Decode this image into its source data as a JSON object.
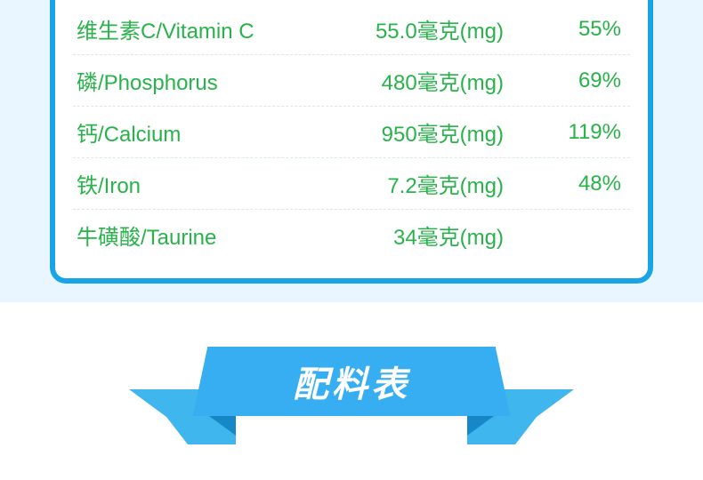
{
  "colors": {
    "page_bg_top": "#e9f5ff",
    "page_bg_bottom": "#ffffff",
    "box_border": "#1aa4e8",
    "box_bg": "#ffffff",
    "text_green": "#28b34a",
    "banner_main": "#36aef1",
    "banner_tail": "#3fb7ee",
    "banner_fold": "#1688c8",
    "banner_text": "#ffffff"
  },
  "nutrition": {
    "font_size_pt": 18,
    "rows": [
      {
        "label": "维生素C/Vitamin C",
        "amount": "55.0毫克(mg)",
        "pct": "55%"
      },
      {
        "label": "磷/Phosphorus",
        "amount": "480毫克(mg)",
        "pct": "69%"
      },
      {
        "label": "钙/Calcium",
        "amount": "950毫克(mg)",
        "pct": "119%"
      },
      {
        "label": "铁/Iron",
        "amount": "7.2毫克(mg)",
        "pct": "48%"
      },
      {
        "label": "牛磺酸/Taurine",
        "amount": "34毫克(mg)",
        "pct": ""
      }
    ]
  },
  "banner": {
    "title": "配料表",
    "title_fontsize": 40
  }
}
